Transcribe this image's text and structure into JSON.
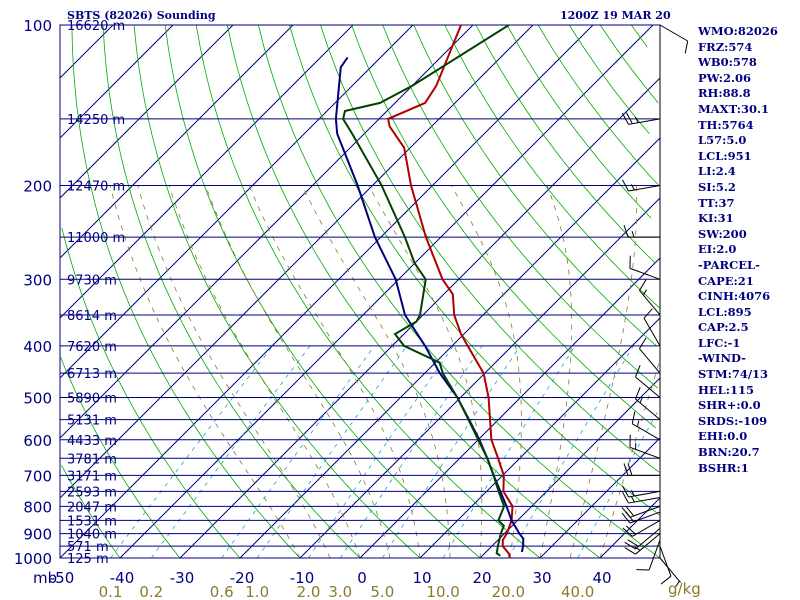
{
  "header": {
    "station": "SBTS (82026) Sounding",
    "time": "1200Z 19 MAR 20"
  },
  "pressure_axis_unit": "mb",
  "mixing_ratio_unit": "g/kg",
  "indices": [
    "WMO:82026",
    "FRZ:574",
    "WB0:578",
    "PW:2.06",
    "RH:88.8",
    "MAXT:30.1",
    "TH:5764",
    "L57:5.0",
    "LCL:951",
    "LI:2.4",
    "SI:5.2",
    "TT:37",
    "KI:31",
    "SW:200",
    "EI:2.0",
    "-PARCEL-",
    "CAPE:21",
    "CINH:4076",
    "LCL:895",
    "CAP:2.5",
    "LFC:-1",
    "-WIND-",
    "STM:74/13",
    "HEL:115",
    "SHR+:0.0",
    "SRDS:-109",
    "EHI:0.0",
    "BRN:20.7",
    "BSHR:1"
  ],
  "chart_data": {
    "type": "line",
    "title": "SBTS (82026) Sounding",
    "subtitle": "1200Z 19 MAR 20",
    "xlabel": "",
    "ylabel": "mb",
    "xlim": [
      -50,
      50
    ],
    "ylim": [
      1000,
      100
    ],
    "log_y": true,
    "grid": true,
    "pressure_ticks": [
      {
        "p": 100,
        "label": "100"
      },
      {
        "p": 200,
        "label": "200"
      },
      {
        "p": 300,
        "label": "300"
      },
      {
        "p": 400,
        "label": "400"
      },
      {
        "p": 500,
        "label": "500"
      },
      {
        "p": 600,
        "label": "600"
      },
      {
        "p": 700,
        "label": "700"
      },
      {
        "p": 800,
        "label": "800"
      },
      {
        "p": 900,
        "label": "900"
      },
      {
        "p": 1000,
        "label": "1000"
      }
    ],
    "temperature_ticks": [
      "-50",
      "-40",
      "-30",
      "-20",
      "-10",
      "0",
      "10",
      "20",
      "30",
      "40"
    ],
    "mixing_ratio_labels": [
      "0.1",
      "0.2",
      "0.6",
      "1.0",
      "2.0",
      "3.0",
      "5.0",
      "10.0",
      "20.0",
      "40.0"
    ],
    "height_labels": [
      {
        "p": 100,
        "label": "16620 m"
      },
      {
        "p": 150,
        "label": "14250 m"
      },
      {
        "p": 200,
        "label": "12470 m"
      },
      {
        "p": 250,
        "label": "11000 m"
      },
      {
        "p": 300,
        "label": "9730 m"
      },
      {
        "p": 350,
        "label": "8614 m"
      },
      {
        "p": 400,
        "label": "7620 m"
      },
      {
        "p": 450,
        "label": "6713 m"
      },
      {
        "p": 500,
        "label": "5890 m"
      },
      {
        "p": 550,
        "label": "5131 m"
      },
      {
        "p": 600,
        "label": "4433 m"
      },
      {
        "p": 650,
        "label": "3781 m"
      },
      {
        "p": 700,
        "label": "3171 m"
      },
      {
        "p": 750,
        "label": "2593 m"
      },
      {
        "p": 800,
        "label": "2047 m"
      },
      {
        "p": 850,
        "label": "1531 m"
      },
      {
        "p": 900,
        "label": "1040 m"
      },
      {
        "p": 950,
        "label": "571 m"
      },
      {
        "p": 1000,
        "label": "125 m"
      }
    ],
    "series": [
      {
        "name": "",
        "color": "#b00000",
        "points": [
          [
            1000,
            25.0
          ],
          [
            980,
            24.0
          ],
          [
            950,
            21.8
          ],
          [
            925,
            20.8
          ],
          [
            900,
            20.4
          ],
          [
            850,
            19.0
          ],
          [
            800,
            16.8
          ],
          [
            750,
            12.8
          ],
          [
            700,
            10.2
          ],
          [
            650,
            6.4
          ],
          [
            600,
            2.2
          ],
          [
            550,
            -1.4
          ],
          [
            500,
            -5.3
          ],
          [
            450,
            -10.2
          ],
          [
            400,
            -17.4
          ],
          [
            380,
            -20.5
          ],
          [
            350,
            -24.8
          ],
          [
            320,
            -28.5
          ],
          [
            300,
            -32.7
          ],
          [
            250,
            -42.5
          ],
          [
            200,
            -53.6
          ],
          [
            170,
            -61.0
          ],
          [
            155,
            -67.0
          ],
          [
            150,
            -68.5
          ],
          [
            140,
            -65.0
          ],
          [
            130,
            -66.0
          ],
          [
            100,
            -72.0
          ]
        ]
      },
      {
        "name": "",
        "color": "#00007a",
        "points": [
          [
            975,
            26.0
          ],
          [
            950,
            25.2
          ],
          [
            920,
            24.0
          ],
          [
            900,
            22.5
          ],
          [
            850,
            19.0
          ],
          [
            800,
            15.8
          ],
          [
            750,
            12.3
          ],
          [
            700,
            8.5
          ],
          [
            650,
            4.6
          ],
          [
            600,
            0.2
          ],
          [
            550,
            -4.9
          ],
          [
            500,
            -10.5
          ],
          [
            450,
            -17.5
          ],
          [
            400,
            -24.5
          ],
          [
            350,
            -33.0
          ],
          [
            300,
            -40.5
          ],
          [
            250,
            -51.0
          ],
          [
            200,
            -62.5
          ],
          [
            160,
            -74.5
          ],
          [
            150,
            -77.2
          ],
          [
            120,
            -85.0
          ],
          [
            115,
            -85.5
          ]
        ]
      },
      {
        "name": "",
        "color": "#004000",
        "points": [
          [
            990,
            23.0
          ],
          [
            980,
            22.0
          ],
          [
            950,
            21.0
          ],
          [
            900,
            19.4
          ],
          [
            870,
            18.6
          ],
          [
            850,
            16.8
          ],
          [
            800,
            15.4
          ],
          [
            750,
            12.0
          ],
          [
            700,
            8.5
          ],
          [
            650,
            4.6
          ],
          [
            600,
            0.0
          ],
          [
            550,
            -5.0
          ],
          [
            500,
            -10.5
          ],
          [
            450,
            -17.0
          ],
          [
            430,
            -19.3
          ],
          [
            400,
            -28.0
          ],
          [
            380,
            -31.5
          ],
          [
            360,
            -30.0
          ],
          [
            350,
            -30.5
          ],
          [
            300,
            -35.5
          ],
          [
            280,
            -40.0
          ],
          [
            250,
            -46.0
          ],
          [
            200,
            -58.5
          ],
          [
            160,
            -72.0
          ],
          [
            150,
            -76.0
          ],
          [
            145,
            -77.0
          ],
          [
            140,
            -72.5
          ],
          [
            130,
            -70.0
          ],
          [
            100,
            -64.0
          ]
        ]
      }
    ],
    "wind_barbs": [
      {
        "p": 1000,
        "dir": 140,
        "kt": 5
      },
      {
        "p": 950,
        "dir": 160,
        "kt": 10
      },
      {
        "p": 925,
        "dir": 200,
        "kt": 10
      },
      {
        "p": 900,
        "dir": 230,
        "kt": 15
      },
      {
        "p": 880,
        "dir": 230,
        "kt": 20
      },
      {
        "p": 850,
        "dir": 240,
        "kt": 20
      },
      {
        "p": 820,
        "dir": 250,
        "kt": 20
      },
      {
        "p": 800,
        "dir": 250,
        "kt": 20
      },
      {
        "p": 770,
        "dir": 260,
        "kt": 15
      },
      {
        "p": 750,
        "dir": 260,
        "kt": 15
      },
      {
        "p": 700,
        "dir": 270,
        "kt": 20
      },
      {
        "p": 650,
        "dir": 290,
        "kt": 15
      },
      {
        "p": 600,
        "dir": 300,
        "kt": 15
      },
      {
        "p": 550,
        "dir": 310,
        "kt": 15
      },
      {
        "p": 500,
        "dir": 310,
        "kt": 10
      },
      {
        "p": 450,
        "dir": 320,
        "kt": 10
      },
      {
        "p": 400,
        "dir": 330,
        "kt": 10
      },
      {
        "p": 350,
        "dir": 320,
        "kt": 15
      },
      {
        "p": 300,
        "dir": 290,
        "kt": 10
      },
      {
        "p": 250,
        "dir": 270,
        "kt": 15
      },
      {
        "p": 200,
        "dir": 260,
        "kt": 15
      },
      {
        "p": 150,
        "dir": 260,
        "kt": 25
      },
      {
        "p": 100,
        "dir": 120,
        "kt": 10
      }
    ]
  }
}
